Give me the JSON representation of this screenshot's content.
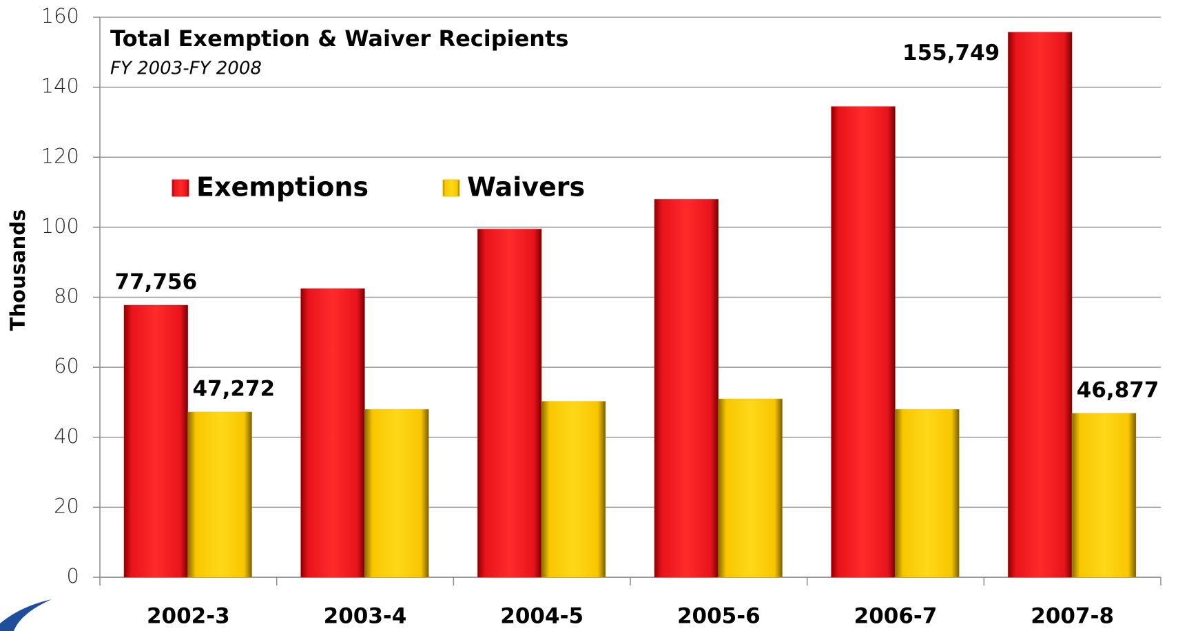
{
  "chart_data": {
    "type": "bar",
    "title": "Total Exemption & Waiver Recipients",
    "subtitle": "FY 2003-FY 2008",
    "y_label": "Thousands",
    "categories": [
      "2002-3",
      "2003-4",
      "2004-5",
      "2005-6",
      "2006-7",
      "2007-8"
    ],
    "series": [
      {
        "name": "Exemptions",
        "color": "#e8141b",
        "values": [
          77.756,
          82.5,
          99.5,
          108,
          134.5,
          155.749
        ],
        "value_labels": [
          "77,756",
          null,
          null,
          null,
          null,
          "155,749"
        ]
      },
      {
        "name": "Waivers",
        "color": "#f7c600",
        "values": [
          47.272,
          48,
          50.3,
          51,
          48,
          46.877
        ],
        "value_labels": [
          "47,272",
          null,
          null,
          null,
          null,
          "46,877"
        ]
      }
    ],
    "ylim": [
      0,
      160
    ],
    "yticks": [
      0,
      20,
      40,
      60,
      80,
      100,
      120,
      140,
      160
    ],
    "grid": true
  }
}
